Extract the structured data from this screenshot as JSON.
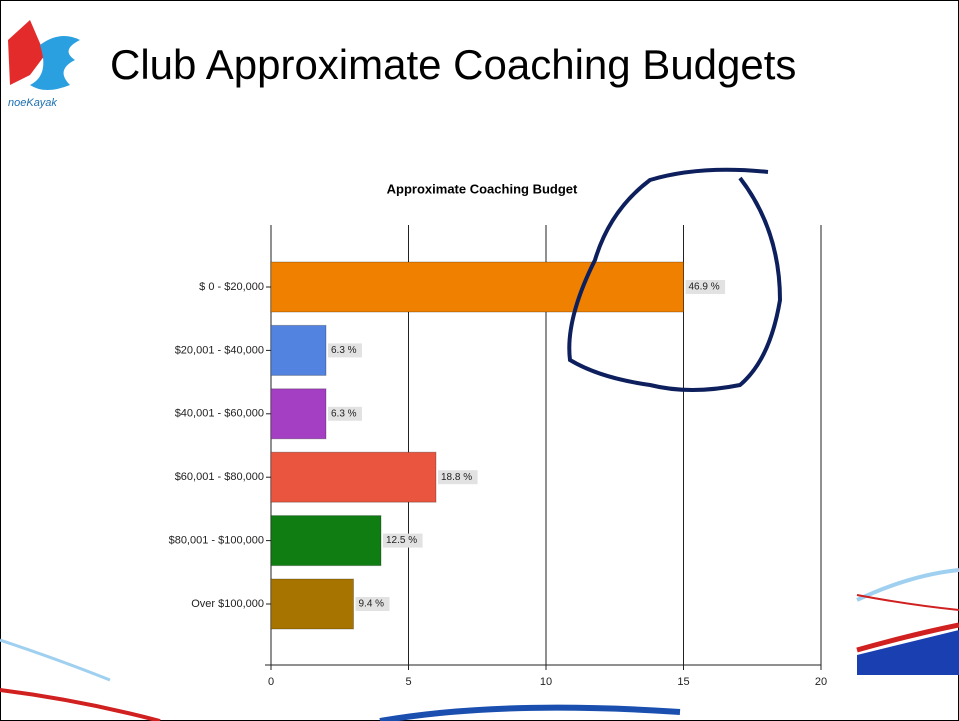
{
  "slide": {
    "title": "Club Approximate Coaching Budgets",
    "logo_text": "noeKayak"
  },
  "chart_data": {
    "type": "barh",
    "title": "Approximate Coaching Budget",
    "categories": [
      "$ 0 - $20,000",
      "$20,001 - $40,000",
      "$40,001 - $60,000",
      "$60,001 - $80,000",
      "$80,001 - $100,000",
      "Over $100,000"
    ],
    "values": [
      15,
      2,
      2,
      6,
      4,
      3
    ],
    "value_labels": [
      "46.9 %",
      "6.3 %",
      "6.3 %",
      "18.8 %",
      "12.5 %",
      "9.4 %"
    ],
    "colors": [
      "#f08000",
      "#5383e0",
      "#a43fc4",
      "#ea5540",
      "#0f7d12",
      "#a87400"
    ],
    "xlim": [
      0,
      20
    ],
    "xticks": [
      0,
      5,
      10,
      15,
      20
    ],
    "grid": true
  }
}
